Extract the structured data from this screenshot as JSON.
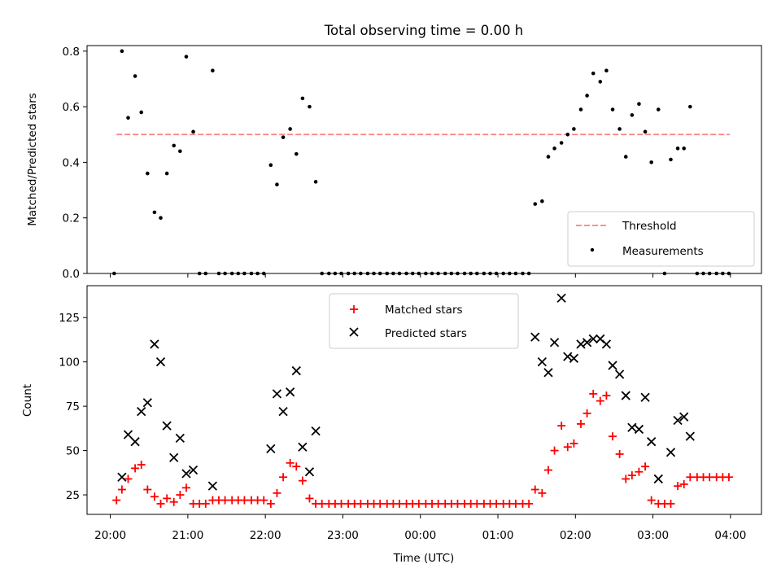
{
  "figure": {
    "title": "Total observing time = 0.00 h",
    "xlabel": "Time (UTC)",
    "x_tick_labels": [
      "20:00",
      "21:00",
      "22:00",
      "23:00",
      "00:00",
      "01:00",
      "02:00",
      "03:00",
      "04:00"
    ]
  },
  "chart_data": [
    {
      "type": "scatter",
      "panel": "top",
      "ylabel": "Matched/Predicted stars",
      "xlim_hours": [
        19.7,
        28.4
      ],
      "ylim": [
        0,
        0.82
      ],
      "y_ticks": [
        0.0,
        0.2,
        0.4,
        0.6,
        0.8
      ],
      "y_tick_labels": [
        "0.0",
        "0.2",
        "0.4",
        "0.6",
        "0.8"
      ],
      "legend_location": "lower right",
      "threshold": {
        "name": "Threshold",
        "value": 0.5,
        "x_range_hours": [
          20.08,
          27.99
        ],
        "color": "#ff8080",
        "style": "dashed"
      },
      "series": [
        {
          "name": "Measurements",
          "color": "#000000",
          "marker": "dot",
          "points": [
            [
              20.05,
              0.0
            ],
            [
              20.15,
              0.8
            ],
            [
              20.23,
              0.56
            ],
            [
              20.32,
              0.71
            ],
            [
              20.4,
              0.58
            ],
            [
              20.48,
              0.36
            ],
            [
              20.57,
              0.22
            ],
            [
              20.65,
              0.2
            ],
            [
              20.73,
              0.36
            ],
            [
              20.82,
              0.46
            ],
            [
              20.9,
              0.44
            ],
            [
              20.98,
              0.78
            ],
            [
              21.07,
              0.51
            ],
            [
              21.15,
              0.0
            ],
            [
              21.23,
              0.0
            ],
            [
              21.32,
              0.73
            ],
            [
              21.4,
              0.0
            ],
            [
              21.48,
              0.0
            ],
            [
              21.57,
              0.0
            ],
            [
              21.65,
              0.0
            ],
            [
              21.73,
              0.0
            ],
            [
              21.82,
              0.0
            ],
            [
              21.9,
              0.0
            ],
            [
              21.98,
              0.0
            ],
            [
              22.07,
              0.39
            ],
            [
              22.15,
              0.32
            ],
            [
              22.23,
              0.49
            ],
            [
              22.32,
              0.52
            ],
            [
              22.4,
              0.43
            ],
            [
              22.48,
              0.63
            ],
            [
              22.57,
              0.6
            ],
            [
              22.65,
              0.33
            ],
            [
              22.73,
              0.0
            ],
            [
              22.82,
              0.0
            ],
            [
              22.9,
              0.0
            ],
            [
              22.98,
              0.0
            ],
            [
              23.07,
              0.0
            ],
            [
              23.15,
              0.0
            ],
            [
              23.23,
              0.0
            ],
            [
              23.32,
              0.0
            ],
            [
              23.4,
              0.0
            ],
            [
              23.48,
              0.0
            ],
            [
              23.57,
              0.0
            ],
            [
              23.65,
              0.0
            ],
            [
              23.73,
              0.0
            ],
            [
              23.82,
              0.0
            ],
            [
              23.9,
              0.0
            ],
            [
              23.98,
              0.0
            ],
            [
              24.07,
              0.0
            ],
            [
              24.15,
              0.0
            ],
            [
              24.23,
              0.0
            ],
            [
              24.32,
              0.0
            ],
            [
              24.4,
              0.0
            ],
            [
              24.48,
              0.0
            ],
            [
              24.57,
              0.0
            ],
            [
              24.65,
              0.0
            ],
            [
              24.73,
              0.0
            ],
            [
              24.82,
              0.0
            ],
            [
              24.9,
              0.0
            ],
            [
              24.98,
              0.0
            ],
            [
              25.07,
              0.0
            ],
            [
              25.15,
              0.0
            ],
            [
              25.23,
              0.0
            ],
            [
              25.32,
              0.0
            ],
            [
              25.4,
              0.0
            ],
            [
              25.48,
              0.25
            ],
            [
              25.57,
              0.26
            ],
            [
              25.65,
              0.42
            ],
            [
              25.73,
              0.45
            ],
            [
              25.82,
              0.47
            ],
            [
              25.9,
              0.5
            ],
            [
              25.98,
              0.52
            ],
            [
              26.07,
              0.59
            ],
            [
              26.15,
              0.64
            ],
            [
              26.23,
              0.72
            ],
            [
              26.32,
              0.69
            ],
            [
              26.4,
              0.73
            ],
            [
              26.48,
              0.59
            ],
            [
              26.57,
              0.52
            ],
            [
              26.65,
              0.42
            ],
            [
              26.73,
              0.57
            ],
            [
              26.82,
              0.61
            ],
            [
              26.9,
              0.51
            ],
            [
              26.98,
              0.4
            ],
            [
              27.07,
              0.59
            ],
            [
              27.15,
              0.0
            ],
            [
              27.23,
              0.41
            ],
            [
              27.32,
              0.45
            ],
            [
              27.4,
              0.45
            ],
            [
              27.48,
              0.6
            ],
            [
              27.57,
              0.0
            ],
            [
              27.65,
              0.0
            ],
            [
              27.73,
              0.0
            ],
            [
              27.82,
              0.0
            ],
            [
              27.9,
              0.0
            ],
            [
              27.98,
              0.0
            ]
          ]
        }
      ]
    },
    {
      "type": "scatter",
      "panel": "bottom",
      "ylabel": "Count",
      "xlim_hours": [
        19.7,
        28.4
      ],
      "ylim": [
        14,
        143
      ],
      "y_ticks": [
        25,
        50,
        75,
        100,
        125
      ],
      "y_tick_labels": [
        "25",
        "50",
        "75",
        "100",
        "125"
      ],
      "legend_location": "upper center",
      "series": [
        {
          "name": "Matched stars",
          "color": "#ff0000",
          "marker": "plus",
          "points": [
            [
              20.08,
              22
            ],
            [
              20.15,
              28
            ],
            [
              20.23,
              34
            ],
            [
              20.32,
              40
            ],
            [
              20.4,
              42
            ],
            [
              20.48,
              28
            ],
            [
              20.57,
              24
            ],
            [
              20.65,
              20
            ],
            [
              20.73,
              23
            ],
            [
              20.82,
              21
            ],
            [
              20.9,
              25
            ],
            [
              20.98,
              29
            ],
            [
              21.07,
              20
            ],
            [
              21.15,
              20
            ],
            [
              21.23,
              20
            ],
            [
              21.32,
              22
            ],
            [
              21.4,
              22
            ],
            [
              21.48,
              22
            ],
            [
              21.57,
              22
            ],
            [
              21.65,
              22
            ],
            [
              21.73,
              22
            ],
            [
              21.82,
              22
            ],
            [
              21.9,
              22
            ],
            [
              21.98,
              22
            ],
            [
              22.07,
              20
            ],
            [
              22.15,
              26
            ],
            [
              22.23,
              35
            ],
            [
              22.32,
              43
            ],
            [
              22.4,
              41
            ],
            [
              22.48,
              33
            ],
            [
              22.57,
              23
            ],
            [
              22.65,
              20
            ],
            [
              22.73,
              20
            ],
            [
              22.82,
              20
            ],
            [
              22.9,
              20
            ],
            [
              22.98,
              20
            ],
            [
              23.07,
              20
            ],
            [
              23.15,
              20
            ],
            [
              23.23,
              20
            ],
            [
              23.32,
              20
            ],
            [
              23.4,
              20
            ],
            [
              23.48,
              20
            ],
            [
              23.57,
              20
            ],
            [
              23.65,
              20
            ],
            [
              23.73,
              20
            ],
            [
              23.82,
              20
            ],
            [
              23.9,
              20
            ],
            [
              23.98,
              20
            ],
            [
              24.07,
              20
            ],
            [
              24.15,
              20
            ],
            [
              24.23,
              20
            ],
            [
              24.32,
              20
            ],
            [
              24.4,
              20
            ],
            [
              24.48,
              20
            ],
            [
              24.57,
              20
            ],
            [
              24.65,
              20
            ],
            [
              24.73,
              20
            ],
            [
              24.82,
              20
            ],
            [
              24.9,
              20
            ],
            [
              24.98,
              20
            ],
            [
              25.07,
              20
            ],
            [
              25.15,
              20
            ],
            [
              25.23,
              20
            ],
            [
              25.32,
              20
            ],
            [
              25.4,
              20
            ],
            [
              25.48,
              28
            ],
            [
              25.57,
              26
            ],
            [
              25.65,
              39
            ],
            [
              25.73,
              50
            ],
            [
              25.82,
              64
            ],
            [
              25.9,
              52
            ],
            [
              25.98,
              54
            ],
            [
              26.07,
              65
            ],
            [
              26.15,
              71
            ],
            [
              26.23,
              82
            ],
            [
              26.32,
              78
            ],
            [
              26.4,
              81
            ],
            [
              26.48,
              58
            ],
            [
              26.57,
              48
            ],
            [
              26.65,
              34
            ],
            [
              26.73,
              36
            ],
            [
              26.82,
              38
            ],
            [
              26.9,
              41
            ],
            [
              26.98,
              22
            ],
            [
              27.07,
              20
            ],
            [
              27.15,
              20
            ],
            [
              27.23,
              20
            ],
            [
              27.32,
              30
            ],
            [
              27.4,
              31
            ],
            [
              27.48,
              35
            ],
            [
              27.57,
              35
            ],
            [
              27.65,
              35
            ],
            [
              27.73,
              35
            ],
            [
              27.82,
              35
            ],
            [
              27.9,
              35
            ],
            [
              27.98,
              35
            ]
          ]
        },
        {
          "name": "Predicted stars",
          "color": "#000000",
          "marker": "x",
          "points": [
            [
              20.15,
              35
            ],
            [
              20.23,
              59
            ],
            [
              20.32,
              55
            ],
            [
              20.4,
              72
            ],
            [
              20.48,
              77
            ],
            [
              20.57,
              110
            ],
            [
              20.65,
              100
            ],
            [
              20.73,
              64
            ],
            [
              20.82,
              46
            ],
            [
              20.9,
              57
            ],
            [
              20.98,
              37
            ],
            [
              21.07,
              39
            ],
            [
              21.32,
              30
            ],
            [
              22.07,
              51
            ],
            [
              22.15,
              82
            ],
            [
              22.23,
              72
            ],
            [
              22.32,
              83
            ],
            [
              22.4,
              95
            ],
            [
              22.48,
              52
            ],
            [
              22.57,
              38
            ],
            [
              22.65,
              61
            ],
            [
              25.48,
              114
            ],
            [
              25.57,
              100
            ],
            [
              25.65,
              94
            ],
            [
              25.73,
              111
            ],
            [
              25.82,
              136
            ],
            [
              25.9,
              103
            ],
            [
              25.98,
              102
            ],
            [
              26.07,
              110
            ],
            [
              26.15,
              111
            ],
            [
              26.23,
              113
            ],
            [
              26.32,
              113
            ],
            [
              26.4,
              110
            ],
            [
              26.48,
              98
            ],
            [
              26.57,
              93
            ],
            [
              26.65,
              81
            ],
            [
              26.73,
              63
            ],
            [
              26.82,
              62
            ],
            [
              26.9,
              80
            ],
            [
              26.98,
              55
            ],
            [
              27.07,
              34
            ],
            [
              27.23,
              49
            ],
            [
              27.32,
              67
            ],
            [
              27.4,
              69
            ],
            [
              27.48,
              58
            ]
          ]
        }
      ]
    }
  ]
}
